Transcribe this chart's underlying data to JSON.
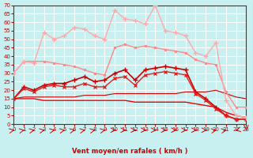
{
  "xlabel": "Vent moyen/en rafales ( km/h )",
  "ylabel": "",
  "background_color": "#c8f0f0",
  "grid_color": "#ffffff",
  "xmin": 0,
  "xmax": 23,
  "ymin": 0,
  "ymax": 70,
  "yticks": [
    0,
    5,
    10,
    15,
    20,
    25,
    30,
    35,
    40,
    45,
    50,
    55,
    60,
    65,
    70
  ],
  "xticks": [
    0,
    1,
    2,
    3,
    4,
    5,
    6,
    7,
    8,
    9,
    10,
    11,
    12,
    13,
    14,
    15,
    16,
    17,
    18,
    19,
    20,
    21,
    22,
    23
  ],
  "lines": [
    {
      "x": [
        0,
        1,
        2,
        3,
        4,
        5,
        6,
        7,
        8,
        9,
        10,
        11,
        12,
        13,
        14,
        15,
        16,
        17,
        18,
        19,
        20,
        21,
        22,
        23
      ],
      "y": [
        15,
        22,
        20,
        23,
        24,
        24,
        26,
        28,
        25,
        26,
        30,
        32,
        26,
        32,
        33,
        34,
        33,
        32,
        19,
        15,
        10,
        5,
        3,
        3
      ],
      "color": "#cc0000",
      "lw": 1.2,
      "marker": "+",
      "ms": 4
    },
    {
      "x": [
        0,
        1,
        2,
        3,
        4,
        5,
        6,
        7,
        8,
        9,
        10,
        11,
        12,
        13,
        14,
        15,
        16,
        17,
        18,
        19,
        20,
        21,
        22,
        23
      ],
      "y": [
        15,
        21,
        19,
        22,
        23,
        22,
        22,
        24,
        22,
        22,
        27,
        28,
        23,
        29,
        30,
        31,
        30,
        29,
        18,
        14,
        9,
        5,
        3,
        3
      ],
      "color": "#dd2222",
      "lw": 1.0,
      "marker": "x",
      "ms": 3
    },
    {
      "x": [
        0,
        1,
        2,
        3,
        4,
        5,
        6,
        7,
        8,
        9,
        10,
        11,
        12,
        13,
        14,
        15,
        16,
        17,
        18,
        19,
        20,
        21,
        22,
        23
      ],
      "y": [
        30,
        37,
        37,
        37,
        36,
        35,
        34,
        32,
        30,
        29,
        45,
        47,
        45,
        46,
        45,
        44,
        43,
        42,
        38,
        36,
        35,
        19,
        10,
        10
      ],
      "color": "#ff8888",
      "lw": 1.0,
      "marker": ".",
      "ms": 3
    },
    {
      "x": [
        0,
        1,
        2,
        3,
        4,
        5,
        6,
        7,
        8,
        9,
        10,
        11,
        12,
        13,
        14,
        15,
        16,
        17,
        18,
        19,
        20,
        21,
        22,
        23
      ],
      "y": [
        30,
        37,
        36,
        54,
        50,
        52,
        57,
        56,
        52,
        50,
        67,
        62,
        61,
        59,
        70,
        55,
        54,
        52,
        42,
        40,
        48,
        14,
        5,
        4
      ],
      "color": "#ffaaaa",
      "lw": 1.0,
      "marker": "+",
      "ms": 4
    },
    {
      "x": [
        0,
        1,
        2,
        3,
        4,
        5,
        6,
        7,
        8,
        9,
        10,
        11,
        12,
        13,
        14,
        15,
        16,
        17,
        18,
        19,
        20,
        21,
        22,
        23
      ],
      "y": [
        15,
        16,
        16,
        16,
        16,
        16,
        16,
        17,
        17,
        17,
        18,
        18,
        18,
        18,
        18,
        18,
        18,
        19,
        19,
        19,
        20,
        18,
        16,
        15
      ],
      "color": "#cc0000",
      "lw": 0.8,
      "marker": null,
      "ms": 0
    },
    {
      "x": [
        0,
        1,
        2,
        3,
        4,
        5,
        6,
        7,
        8,
        9,
        10,
        11,
        12,
        13,
        14,
        15,
        16,
        17,
        18,
        19,
        20,
        21,
        22,
        23
      ],
      "y": [
        15,
        15,
        15,
        14,
        14,
        14,
        14,
        14,
        14,
        14,
        14,
        14,
        13,
        13,
        13,
        13,
        13,
        13,
        12,
        11,
        10,
        7,
        5,
        4
      ],
      "color": "#ee0000",
      "lw": 1.0,
      "marker": null,
      "ms": 0
    }
  ],
  "wind_arrows": {
    "x": [
      0,
      1,
      2,
      3,
      4,
      5,
      6,
      7,
      8,
      9,
      10,
      11,
      12,
      13,
      14,
      15,
      16,
      17,
      18,
      19,
      20,
      21,
      22,
      23
    ],
    "angles_deg": [
      45,
      45,
      45,
      45,
      45,
      45,
      45,
      45,
      45,
      45,
      0,
      0,
      0,
      0,
      0,
      0,
      0,
      0,
      0,
      0,
      45,
      45,
      225,
      270
    ]
  }
}
